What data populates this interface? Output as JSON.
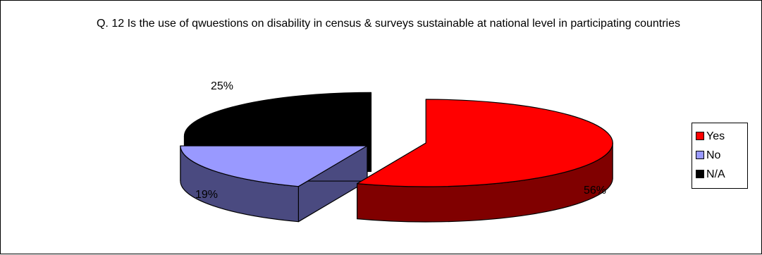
{
  "chart_data": {
    "type": "pie",
    "title": "Q. 12 Is the use of qwuestions on disability in census & surveys sustainable at national level in participating countries",
    "categories": [
      "Yes",
      "No",
      "N/A"
    ],
    "values": [
      56,
      19,
      25
    ],
    "value_labels": [
      "56%",
      "19%",
      "25%"
    ],
    "colors": {
      "Yes": {
        "top": "#ff0000",
        "side": "#800000"
      },
      "No": {
        "top": "#9999ff",
        "side": "#4a4a80"
      },
      "N/A": {
        "top": "#000000",
        "side": "#000000"
      }
    },
    "style": "3d-exploded",
    "legend": "right"
  }
}
